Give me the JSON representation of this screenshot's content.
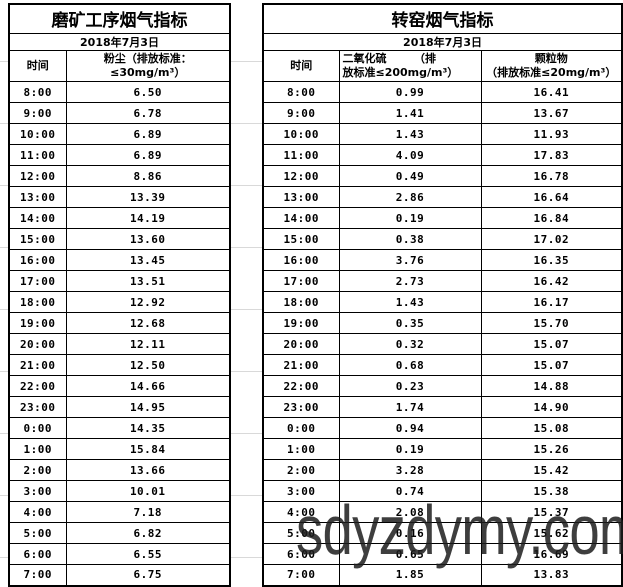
{
  "watermark": {
    "text": "sdyzdymy.com"
  },
  "grinding_table": {
    "title": "磨矿工序烟气指标",
    "date": "2018年7月3日",
    "headers": {
      "time": "时间",
      "dust": "粉尘（排放标准：≤30mg/m³）"
    },
    "rows": [
      [
        "8:00",
        "6.50"
      ],
      [
        "9:00",
        "6.78"
      ],
      [
        "10:00",
        "6.89"
      ],
      [
        "11:00",
        "6.89"
      ],
      [
        "12:00",
        "8.86"
      ],
      [
        "13:00",
        "13.39"
      ],
      [
        "14:00",
        "14.19"
      ],
      [
        "15:00",
        "13.60"
      ],
      [
        "16:00",
        "13.45"
      ],
      [
        "17:00",
        "13.51"
      ],
      [
        "18:00",
        "12.92"
      ],
      [
        "19:00",
        "12.68"
      ],
      [
        "20:00",
        "12.11"
      ],
      [
        "21:00",
        "12.50"
      ],
      [
        "22:00",
        "14.66"
      ],
      [
        "23:00",
        "14.95"
      ],
      [
        "0:00",
        "14.35"
      ],
      [
        "1:00",
        "15.84"
      ],
      [
        "2:00",
        "13.66"
      ],
      [
        "3:00",
        "10.01"
      ],
      [
        "4:00",
        "7.18"
      ],
      [
        "5:00",
        "6.82"
      ],
      [
        "6:00",
        "6.55"
      ],
      [
        "7:00",
        "6.75"
      ]
    ]
  },
  "kiln_table": {
    "title": "转窑烟气指标",
    "date": "2018年7月3日",
    "headers": {
      "time": "时间",
      "so2": "二氧化硫　　　（排\n放标准≤200mg/m³）",
      "pm": "颗粒物\n（排放标准≤20mg/m³）"
    },
    "rows": [
      [
        "8:00",
        "0.99",
        "16.41"
      ],
      [
        "9:00",
        "1.41",
        "13.67"
      ],
      [
        "10:00",
        "1.43",
        "11.93"
      ],
      [
        "11:00",
        "4.09",
        "17.83"
      ],
      [
        "12:00",
        "0.49",
        "16.78"
      ],
      [
        "13:00",
        "2.86",
        "16.64"
      ],
      [
        "14:00",
        "0.19",
        "16.84"
      ],
      [
        "15:00",
        "0.38",
        "17.02"
      ],
      [
        "16:00",
        "3.76",
        "16.35"
      ],
      [
        "17:00",
        "2.73",
        "16.42"
      ],
      [
        "18:00",
        "1.43",
        "16.17"
      ],
      [
        "19:00",
        "0.35",
        "15.70"
      ],
      [
        "20:00",
        "0.32",
        "15.07"
      ],
      [
        "21:00",
        "0.68",
        "15.07"
      ],
      [
        "22:00",
        "0.23",
        "14.88"
      ],
      [
        "23:00",
        "1.74",
        "14.90"
      ],
      [
        "0:00",
        "0.94",
        "15.08"
      ],
      [
        "1:00",
        "0.19",
        "15.26"
      ],
      [
        "2:00",
        "3.28",
        "15.42"
      ],
      [
        "3:00",
        "0.74",
        "15.38"
      ],
      [
        "4:00",
        "2.08",
        "15.37"
      ],
      [
        "5:00",
        "0.16",
        "15.62"
      ],
      [
        "6:00",
        "0.65",
        "16.69"
      ],
      [
        "7:00",
        "1.85",
        "13.83"
      ]
    ]
  }
}
